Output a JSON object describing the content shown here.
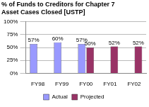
{
  "chart_data": {
    "type": "bar",
    "title": [
      "% of Funds to Creditors for Chapter 7",
      "Asset Cases Closed [USTP]"
    ],
    "categories": [
      "FY98",
      "FY99",
      "FY00",
      "FY01",
      "FY02"
    ],
    "series": [
      {
        "name": "Actual",
        "color": "#9999ff",
        "values": [
          57,
          60,
          57,
          null,
          null
        ],
        "value_labels": [
          "57%",
          "60%",
          "57%",
          null,
          null
        ]
      },
      {
        "name": "Projected",
        "color": "#993366",
        "values": [
          null,
          null,
          50,
          52,
          52
        ],
        "value_labels": [
          null,
          null,
          "50%",
          "52%",
          "52%"
        ]
      }
    ],
    "ylim": [
      0,
      100
    ],
    "yticks": [
      {
        "value": 0,
        "label": "0%"
      },
      {
        "value": 25,
        "label": "25%"
      },
      {
        "value": 50,
        "label": "50%"
      },
      {
        "value": 75,
        "label": "75%"
      },
      {
        "value": 100,
        "label": "100%"
      }
    ],
    "grid": true,
    "legend": "bottom",
    "data_labels": true
  }
}
